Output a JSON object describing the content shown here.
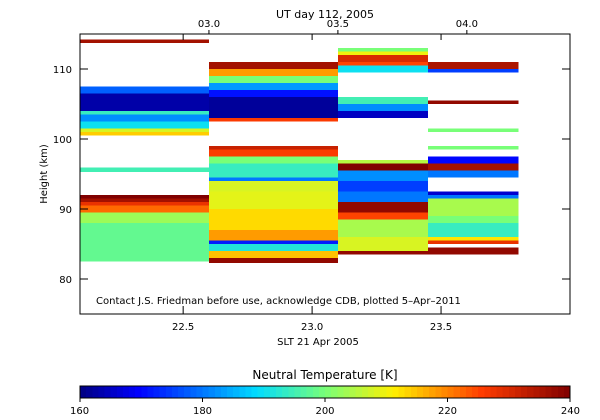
{
  "chart_data": {
    "type": "heatmap",
    "title": "UT day 112, 2005",
    "xlabel": "SLT 21 Apr 2005",
    "ylabel": "Height (km)",
    "xlim": [
      22.1,
      24.0
    ],
    "ylim": [
      75,
      115
    ],
    "x_ticks": [
      "22.5",
      "23.0",
      "23.5"
    ],
    "x_tick_values": [
      22.5,
      23.0,
      23.5
    ],
    "y_ticks": [
      "80",
      "90",
      "100",
      "110"
    ],
    "y_tick_values": [
      80,
      90,
      100,
      110
    ],
    "top_ticks": [
      "03.0",
      "03.5",
      "04.0"
    ],
    "top_tick_values": [
      22.6,
      23.1,
      23.6
    ],
    "annotation": "Contact J.S. Friedman before use, acknowledge CDB, plotted 5–Apr–2011",
    "colorbar": {
      "label": "Neutral Temperature [K]",
      "min": 160,
      "max": 240,
      "ticks": [
        "160",
        "180",
        "200",
        "220",
        "240"
      ],
      "tick_values": [
        160,
        180,
        200,
        220,
        240
      ]
    },
    "columns": [
      {
        "x0": 22.1,
        "x1": 22.6,
        "segments": [
          [
            82.5,
            88,
            198
          ],
          [
            88,
            89.5,
            203
          ],
          [
            89.5,
            90.5,
            222
          ],
          [
            90.5,
            91,
            228
          ],
          [
            91,
            91.5,
            236
          ],
          [
            91.5,
            92,
            240
          ],
          [
            95.3,
            95.9,
            195
          ],
          [
            100.5,
            101,
            214
          ],
          [
            101,
            101.5,
            208
          ],
          [
            101.5,
            102.5,
            190
          ],
          [
            102.5,
            103.5,
            182
          ],
          [
            103.5,
            104,
            194
          ],
          [
            104,
            106.5,
            163
          ],
          [
            106.5,
            107.5,
            178
          ],
          [
            113.7,
            114.2,
            236
          ]
        ]
      },
      {
        "x0": 22.6,
        "x1": 23.1,
        "segments": [
          [
            82.3,
            83,
            238
          ],
          [
            83,
            84,
            215
          ],
          [
            84,
            85,
            192
          ],
          [
            85,
            85.5,
            172
          ],
          [
            85.5,
            87,
            218
          ],
          [
            87,
            90,
            213
          ],
          [
            90,
            92.5,
            209
          ],
          [
            92.5,
            94,
            208
          ],
          [
            94,
            94.5,
            180
          ],
          [
            94.5,
            96.5,
            194
          ],
          [
            96.5,
            97.5,
            200
          ],
          [
            97.5,
            98.5,
            226
          ],
          [
            98.5,
            99,
            232
          ],
          [
            102.5,
            103,
            226
          ],
          [
            103,
            106,
            162
          ],
          [
            106,
            107,
            171
          ],
          [
            107,
            108,
            183
          ],
          [
            108,
            109,
            200
          ],
          [
            109,
            110,
            218
          ],
          [
            110,
            111,
            236
          ]
        ]
      },
      {
        "x0": 23.1,
        "x1": 23.45,
        "segments": [
          [
            83.5,
            84,
            238
          ],
          [
            84,
            86,
            208
          ],
          [
            86,
            88.5,
            204
          ],
          [
            88.5,
            89.5,
            225
          ],
          [
            89.5,
            91,
            238
          ],
          [
            91,
            92.5,
            180
          ],
          [
            92.5,
            94,
            175
          ],
          [
            94,
            95.5,
            182
          ],
          [
            95.5,
            96.5,
            240
          ],
          [
            96.5,
            97,
            205
          ],
          [
            103,
            104,
            165
          ],
          [
            104,
            105,
            182
          ],
          [
            105,
            106,
            195
          ],
          [
            109.5,
            110.5,
            190
          ],
          [
            110.5,
            111,
            225
          ],
          [
            111,
            112,
            230
          ],
          [
            112,
            112.5,
            210
          ],
          [
            112.5,
            113,
            200
          ]
        ]
      },
      {
        "x0": 23.45,
        "x1": 23.8,
        "segments": [
          [
            83.5,
            84.5,
            238
          ],
          [
            85,
            85.5,
            228
          ],
          [
            85.5,
            86,
            212
          ],
          [
            86,
            88,
            194
          ],
          [
            88,
            89,
            200
          ],
          [
            89,
            91.5,
            204
          ],
          [
            91.5,
            92,
            180
          ],
          [
            92,
            92.5,
            166
          ],
          [
            94.5,
            95.5,
            180
          ],
          [
            95.5,
            96.5,
            236
          ],
          [
            96.5,
            97.5,
            170
          ],
          [
            98.5,
            99,
            200
          ],
          [
            101,
            101.5,
            200
          ],
          [
            105,
            105.5,
            238
          ],
          [
            109.5,
            110,
            175
          ],
          [
            110,
            111,
            235
          ]
        ]
      }
    ]
  }
}
